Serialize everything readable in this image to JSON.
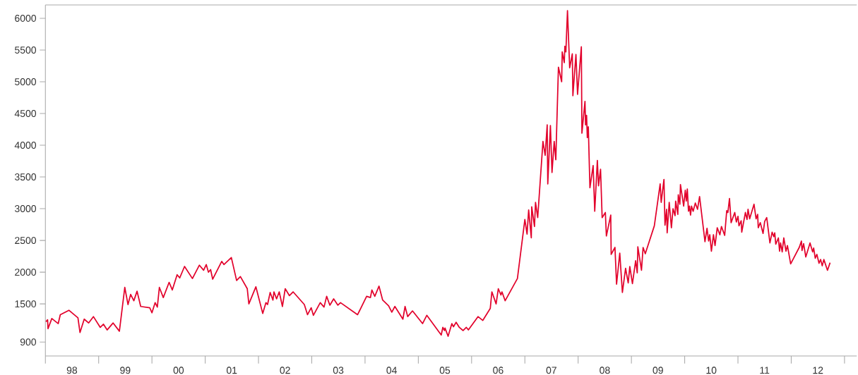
{
  "chart_data": {
    "type": "line",
    "color": "#e2002b",
    "marker": "none",
    "line_style": "solid",
    "x": [
      "1998-01-05",
      "1998-01-16",
      "1998-01-19",
      "1998-02-14",
      "1998-03-30",
      "1998-04-13",
      "1998-06-11",
      "1998-08-12",
      "1998-08-26",
      "1998-09-24",
      "1998-10-24",
      "1998-11-26",
      "1999-01-12",
      "1999-02-03",
      "1999-02-28",
      "1999-04-10",
      "1999-05-23",
      "1999-06-29",
      "1999-07-21",
      "1999-08-08",
      "1999-08-30",
      "1999-09-21",
      "1999-10-16",
      "1999-12-17",
      "2000-01-01",
      "2000-01-23",
      "2000-02-07",
      "2000-02-21",
      "2000-03-19",
      "2000-04-28",
      "2000-05-20",
      "2000-06-22",
      "2000-07-10",
      "2000-08-12",
      "2000-10-05",
      "2000-11-22",
      "2000-12-21",
      "2001-01-08",
      "2001-01-23",
      "2001-02-07",
      "2001-02-21",
      "2001-04-24",
      "2001-05-09",
      "2001-06-29",
      "2001-08-04",
      "2001-08-30",
      "2001-10-16",
      "2001-10-27",
      "2001-12-14",
      "2002-01-30",
      "2002-02-21",
      "2002-03-04",
      "2002-03-22",
      "2002-04-10",
      "2002-04-17",
      "2002-05-05",
      "2002-05-23",
      "2002-06-14",
      "2002-07-03",
      "2002-08-01",
      "2002-08-26",
      "2002-11-11",
      "2002-12-03",
      "2002-12-28",
      "2003-01-12",
      "2003-02-28",
      "2003-03-26",
      "2003-04-13",
      "2003-05-05",
      "2003-05-31",
      "2003-06-29",
      "2003-07-17",
      "2003-11-11",
      "2004-01-12",
      "2004-02-07",
      "2004-02-17",
      "2004-03-08",
      "2004-04-06",
      "2004-05-01",
      "2004-06-11",
      "2004-07-03",
      "2004-07-24",
      "2004-09-17",
      "2004-10-02",
      "2004-10-20",
      "2004-11-22",
      "2005-01-30",
      "2005-02-28",
      "2005-06-07",
      "2005-06-18",
      "2005-06-29",
      "2005-07-03",
      "2005-07-24",
      "2005-08-19",
      "2005-08-30",
      "2005-09-17",
      "2005-10-09",
      "2005-11-04",
      "2005-11-26",
      "2005-12-10",
      "2006-02-14",
      "2006-03-19",
      "2006-05-09",
      "2006-05-20",
      "2006-06-18",
      "2006-07-03",
      "2006-07-21",
      "2006-07-28",
      "2006-08-19",
      "2006-11-11",
      "2007-01-01",
      "2007-01-16",
      "2007-01-27",
      "2007-02-14",
      "2007-02-17",
      "2007-03-08",
      "2007-03-15",
      "2007-03-30",
      "2007-05-05",
      "2007-05-20",
      "2007-06-03",
      "2007-06-07",
      "2007-06-25",
      "2007-07-06",
      "2007-07-21",
      "2007-08-01",
      "2007-08-19",
      "2007-09-10",
      "2007-09-14",
      "2007-09-28",
      "2007-10-02",
      "2007-10-09",
      "2007-10-20",
      "2007-11-04",
      "2007-11-22",
      "2007-11-26",
      "2007-12-17",
      "2007-12-28",
      "2008-01-23",
      "2008-01-27",
      "2008-02-17",
      "2008-02-21",
      "2008-02-28",
      "2008-03-04",
      "2008-03-11",
      "2008-03-22",
      "2008-04-13",
      "2008-04-24",
      "2008-05-12",
      "2008-05-20",
      "2008-06-03",
      "2008-06-14",
      "2008-07-06",
      "2008-07-13",
      "2008-08-12",
      "2008-08-15",
      "2008-09-10",
      "2008-09-21",
      "2008-10-13",
      "2008-10-31",
      "2008-11-22",
      "2008-12-10",
      "2008-12-21",
      "2009-01-08",
      "2009-01-30",
      "2009-02-10",
      "2009-02-14",
      "2009-03-11",
      "2009-03-22",
      "2009-04-06",
      "2009-06-07",
      "2009-07-17",
      "2009-07-24",
      "2009-08-12",
      "2009-08-19",
      "2009-08-30",
      "2009-09-03",
      "2009-09-17",
      "2009-10-02",
      "2009-10-13",
      "2009-10-27",
      "2009-10-31",
      "2009-11-15",
      "2009-11-18",
      "2009-11-29",
      "2009-12-03",
      "2009-12-25",
      "2010-01-05",
      "2010-01-12",
      "2010-01-19",
      "2010-01-27",
      "2010-02-03",
      "2010-02-10",
      "2010-02-17",
      "2010-02-28",
      "2010-03-08",
      "2010-03-15",
      "2010-03-30",
      "2010-04-13",
      "2010-05-20",
      "2010-06-03",
      "2010-06-14",
      "2010-06-22",
      "2010-07-03",
      "2010-07-17",
      "2010-07-28",
      "2010-08-12",
      "2010-08-30",
      "2010-09-10",
      "2010-10-02",
      "2010-10-16",
      "2010-10-24",
      "2010-11-04",
      "2010-11-15",
      "2010-12-10",
      "2010-12-21",
      "2011-01-01",
      "2011-01-08",
      "2011-01-23",
      "2011-01-27",
      "2011-02-21",
      "2011-03-04",
      "2011-03-11",
      "2011-03-22",
      "2011-04-21",
      "2011-05-05",
      "2011-05-16",
      "2011-05-20",
      "2011-06-03",
      "2011-06-22",
      "2011-07-03",
      "2011-07-17",
      "2011-08-08",
      "2011-08-23",
      "2011-09-03",
      "2011-09-10",
      "2011-09-17",
      "2011-10-05",
      "2011-10-13",
      "2011-10-20",
      "2011-10-31",
      "2011-11-11",
      "2011-11-26",
      "2011-12-06",
      "2011-12-28",
      "2012-02-25",
      "2012-03-11",
      "2012-03-15",
      "2012-03-26",
      "2012-04-10",
      "2012-05-09",
      "2012-05-27",
      "2012-06-03",
      "2012-06-14",
      "2012-06-25",
      "2012-07-10",
      "2012-07-21",
      "2012-08-01",
      "2012-08-12",
      "2012-09-06",
      "2012-09-24"
    ],
    "values": [
      1220,
      1250,
      1110,
      1270,
      1190,
      1330,
      1400,
      1280,
      1050,
      1260,
      1200,
      1300,
      1130,
      1180,
      1090,
      1200,
      1070,
      1760,
      1490,
      1650,
      1550,
      1700,
      1460,
      1440,
      1360,
      1520,
      1450,
      1760,
      1600,
      1840,
      1720,
      1960,
      1910,
      2090,
      1900,
      2110,
      2030,
      2120,
      2000,
      2040,
      1890,
      2170,
      2120,
      2230,
      1870,
      1930,
      1740,
      1500,
      1770,
      1350,
      1520,
      1490,
      1680,
      1560,
      1690,
      1580,
      1690,
      1460,
      1740,
      1630,
      1690,
      1490,
      1330,
      1440,
      1320,
      1520,
      1450,
      1620,
      1480,
      1580,
      1480,
      1520,
      1330,
      1620,
      1600,
      1720,
      1620,
      1780,
      1560,
      1470,
      1370,
      1460,
      1260,
      1460,
      1300,
      1390,
      1190,
      1320,
      1010,
      1130,
      1080,
      1120,
      990,
      1190,
      1140,
      1210,
      1130,
      1080,
      1130,
      1090,
      1300,
      1240,
      1430,
      1690,
      1500,
      1740,
      1640,
      1690,
      1550,
      1900,
      2830,
      2600,
      2980,
      2540,
      3030,
      2720,
      3100,
      2860,
      4060,
      3840,
      4320,
      3390,
      4310,
      3570,
      4060,
      3770,
      5230,
      5000,
      5470,
      5300,
      5560,
      5470,
      6120,
      5220,
      5440,
      4780,
      5430,
      4800,
      5550,
      4190,
      4690,
      4320,
      4470,
      4120,
      4290,
      3330,
      3680,
      2960,
      3760,
      3360,
      3620,
      2860,
      2940,
      2570,
      2900,
      2280,
      2390,
      1810,
      2300,
      1680,
      2060,
      1830,
      2090,
      1820,
      2180,
      1990,
      2400,
      2030,
      2390,
      2290,
      2730,
      3390,
      3100,
      3460,
      2740,
      2990,
      2620,
      3100,
      2700,
      3000,
      2890,
      3120,
      2910,
      3220,
      3070,
      3380,
      3040,
      3290,
      3120,
      3310,
      2960,
      3040,
      2900,
      3040,
      2960,
      3030,
      3090,
      2990,
      3190,
      2480,
      2690,
      2490,
      2590,
      2330,
      2590,
      2420,
      2700,
      2590,
      2720,
      2580,
      2970,
      2940,
      3160,
      2780,
      2940,
      2790,
      2880,
      2730,
      2810,
      2630,
      2940,
      2830,
      2990,
      2840,
      3070,
      2840,
      2910,
      2700,
      2780,
      2610,
      2800,
      2860,
      2460,
      2630,
      2560,
      2620,
      2440,
      2540,
      2330,
      2460,
      2320,
      2540,
      2330,
      2420,
      2130,
      2390,
      2490,
      2340,
      2450,
      2240,
      2460,
      2320,
      2380,
      2220,
      2280,
      2140,
      2200,
      2100,
      2200,
      2030,
      2150
    ],
    "xlim": [
      "1998-01-01",
      "2013-03-26"
    ],
    "ylim": [
      680,
      6210
    ],
    "xticks": [
      {
        "value": "1998-01-01",
        "label": null
      },
      {
        "value": "1998-07-02",
        "label": "98"
      },
      {
        "value": "1999-01-01",
        "label": null
      },
      {
        "value": "1999-07-02",
        "label": "99"
      },
      {
        "value": "2000-01-01",
        "label": null
      },
      {
        "value": "2000-07-02",
        "label": "00"
      },
      {
        "value": "2001-01-01",
        "label": null
      },
      {
        "value": "2001-07-02",
        "label": "01"
      },
      {
        "value": "2002-01-01",
        "label": null
      },
      {
        "value": "2002-07-02",
        "label": "02"
      },
      {
        "value": "2003-01-01",
        "label": null
      },
      {
        "value": "2003-07-02",
        "label": "03"
      },
      {
        "value": "2004-01-01",
        "label": null
      },
      {
        "value": "2004-07-02",
        "label": "04"
      },
      {
        "value": "2005-01-01",
        "label": null
      },
      {
        "value": "2005-07-02",
        "label": "05"
      },
      {
        "value": "2006-01-01",
        "label": null
      },
      {
        "value": "2006-07-02",
        "label": "06"
      },
      {
        "value": "2007-01-01",
        "label": null
      },
      {
        "value": "2007-07-02",
        "label": "07"
      },
      {
        "value": "2008-01-01",
        "label": null
      },
      {
        "value": "2008-07-02",
        "label": "08"
      },
      {
        "value": "2009-01-01",
        "label": null
      },
      {
        "value": "2009-07-02",
        "label": "09"
      },
      {
        "value": "2010-01-01",
        "label": null
      },
      {
        "value": "2010-07-02",
        "label": "10"
      },
      {
        "value": "2011-01-01",
        "label": null
      },
      {
        "value": "2011-07-02",
        "label": "11"
      },
      {
        "value": "2012-01-01",
        "label": null
      },
      {
        "value": "2012-07-02",
        "label": "12"
      },
      {
        "value": "2013-01-01",
        "label": null
      }
    ],
    "yticks": [
      900,
      1500,
      2000,
      2500,
      3000,
      3500,
      4000,
      4500,
      5000,
      5500,
      6000
    ]
  }
}
